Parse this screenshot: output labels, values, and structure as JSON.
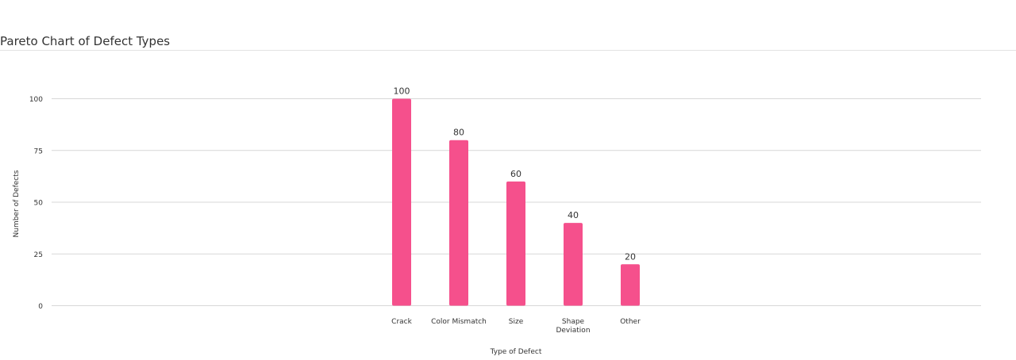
{
  "chart_data": {
    "type": "bar",
    "title": "Pareto Chart of Defect Types",
    "xlabel": "Type of Defect",
    "ylabel": "Number of Defects",
    "categories": [
      "Crack",
      "Color Mismatch",
      "Size",
      "Shape Deviation",
      "Other"
    ],
    "category_lines": [
      [
        "Crack"
      ],
      [
        "Color Mismatch"
      ],
      [
        "Size"
      ],
      [
        "Shape",
        "Deviation"
      ],
      [
        "Other"
      ]
    ],
    "values": [
      100,
      80,
      60,
      40,
      20
    ],
    "ylim": [
      0,
      100
    ],
    "yticks": [
      0,
      25,
      50,
      75,
      100
    ],
    "grid": true,
    "data_labels": true,
    "bar_color": "#f5508c",
    "grid_color": "#d7d7d7",
    "text_color": "#333333"
  }
}
